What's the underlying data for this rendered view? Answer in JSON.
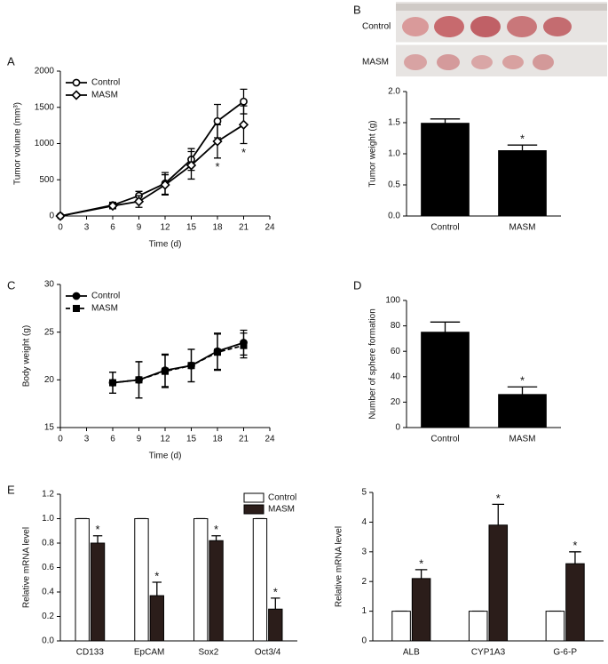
{
  "chart_data": [
    {
      "type": "line",
      "panel": "A",
      "xlabel": "Time (d)",
      "ylabel": "Tumor volume (mm³)",
      "x": [
        0,
        6,
        9,
        12,
        15,
        18,
        21
      ],
      "xlim": [
        0,
        24
      ],
      "xticks": [
        0,
        3,
        6,
        9,
        12,
        15,
        18,
        21,
        24
      ],
      "ylim": [
        0,
        2000
      ],
      "yticks": [
        0,
        500,
        1000,
        1500,
        2000
      ],
      "legend": "upper left",
      "series": [
        {
          "name": "Control",
          "color": "#000000",
          "marker": "circle",
          "filled": false,
          "dashed": false,
          "values": [
            0,
            150,
            280,
            450,
            780,
            1310,
            1580
          ],
          "errors": [
            0,
            40,
            60,
            150,
            150,
            230,
            170
          ],
          "significance": [
            null,
            null,
            null,
            null,
            null,
            null,
            null
          ]
        },
        {
          "name": "MASM",
          "color": "#000000",
          "marker": "diamond",
          "filled": false,
          "dashed": false,
          "values": [
            0,
            140,
            200,
            430,
            700,
            1030,
            1260
          ],
          "errors": [
            0,
            40,
            80,
            140,
            190,
            230,
            260
          ],
          "significance": [
            null,
            null,
            null,
            null,
            null,
            "*",
            "*"
          ]
        }
      ]
    },
    {
      "type": "bar",
      "panel": "B",
      "image_labels": [
        "Control",
        "MASM"
      ],
      "ylabel": "Tumor weight (g)",
      "categories": [
        "Control",
        "MASM"
      ],
      "ylim": [
        0,
        2.0
      ],
      "yticks": [
        {
          "value": 0,
          "label": "0.0"
        },
        0.5,
        {
          "value": 1,
          "label": "1.0"
        },
        1.5,
        {
          "value": 2,
          "label": "2.0"
        }
      ],
      "legend": false,
      "series": [
        {
          "color": "#000000",
          "values": [
            1.49,
            1.05
          ],
          "errors": [
            0.07,
            0.09
          ],
          "significance": [
            null,
            "*"
          ]
        }
      ]
    },
    {
      "type": "line",
      "panel": "C",
      "xlabel": "Time (d)",
      "ylabel": "Body weight (g)",
      "x": [
        6,
        9,
        12,
        15,
        18,
        21
      ],
      "xlim": [
        0,
        24
      ],
      "xticks": [
        0,
        3,
        6,
        9,
        12,
        15,
        18,
        21,
        24
      ],
      "ylim": [
        15,
        30
      ],
      "yticks": [
        15,
        20,
        25,
        30
      ],
      "legend": "upper left",
      "series": [
        {
          "name": "Control",
          "color": "#000000",
          "marker": "circle",
          "filled": true,
          "dashed": false,
          "values": [
            19.7,
            20.0,
            21.0,
            21.5,
            23.0,
            23.9
          ],
          "errors": [
            1.1,
            1.9,
            1.7,
            1.7,
            1.9,
            1.3
          ],
          "significance": [
            null,
            null,
            null,
            null,
            null,
            null
          ]
        },
        {
          "name": "MASM",
          "color": "#000000",
          "marker": "square",
          "filled": true,
          "dashed": true,
          "values": [
            19.7,
            20.0,
            20.9,
            21.5,
            22.9,
            23.6
          ],
          "errors": [
            1.1,
            1.9,
            1.7,
            1.7,
            1.9,
            1.3
          ],
          "significance": [
            null,
            null,
            null,
            null,
            null,
            null
          ]
        }
      ]
    },
    {
      "type": "bar",
      "panel": "D",
      "ylabel": "Number of sphere formation",
      "categories": [
        "Control",
        "MASM"
      ],
      "ylim": [
        0,
        100
      ],
      "yticks": [
        0,
        20,
        40,
        60,
        80,
        100
      ],
      "legend": false,
      "series": [
        {
          "color": "#000000",
          "values": [
            75,
            26
          ],
          "errors": [
            8,
            6
          ],
          "significance": [
            null,
            "*"
          ]
        }
      ]
    },
    {
      "type": "bar",
      "panel": "E",
      "ylabel": "Relative mRNA level",
      "categories": [
        "CD133",
        "EpCAM",
        "Sox2",
        "Oct3/4"
      ],
      "ylim": [
        0,
        1.2
      ],
      "yticks": [
        {
          "value": 0,
          "label": "0.0"
        },
        0.2,
        0.4,
        0.6,
        0.8,
        {
          "value": 1,
          "label": "1.0"
        },
        1.2
      ],
      "legend": "upper right",
      "series": [
        {
          "name": "Control",
          "color": "#ffffff",
          "values": [
            1,
            1,
            1,
            1
          ],
          "errors": [
            0,
            0,
            0,
            0
          ],
          "significance": [
            null,
            null,
            null,
            null
          ]
        },
        {
          "name": "MASM",
          "color": "#2b1d1a",
          "values": [
            0.8,
            0.37,
            0.82,
            0.26
          ],
          "errors": [
            0.06,
            0.11,
            0.04,
            0.09
          ],
          "significance": [
            "*",
            "*",
            "*",
            "*"
          ]
        }
      ]
    },
    {
      "type": "bar",
      "ylabel": "Relative mRNA level",
      "categories": [
        "ALB",
        "CYP1A3",
        "G-6-P"
      ],
      "ylim": [
        0,
        5
      ],
      "yticks": [
        0,
        1,
        2,
        3,
        4,
        5
      ],
      "legend": false,
      "series": [
        {
          "color": "#ffffff",
          "values": [
            1,
            1,
            1
          ],
          "errors": [
            0,
            0,
            0
          ],
          "significance": [
            null,
            null,
            null
          ]
        },
        {
          "color": "#2b1d1a",
          "values": [
            2.1,
            3.9,
            2.6
          ],
          "errors": [
            0.3,
            0.7,
            0.4
          ],
          "significance": [
            "*",
            "*",
            "*"
          ]
        }
      ]
    }
  ]
}
